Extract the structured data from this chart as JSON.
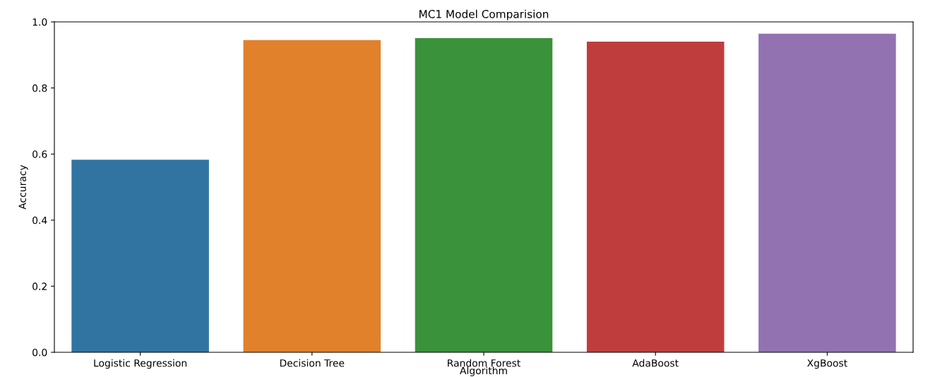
{
  "chart_data": {
    "type": "bar",
    "title": "MC1 Model Comparision",
    "xlabel": "Algorithm",
    "ylabel": "Accuracy",
    "categories": [
      "Logistic Regression",
      "Decision Tree",
      "Random Forest",
      "AdaBoost",
      "XgBoost"
    ],
    "values": [
      0.583,
      0.945,
      0.951,
      0.94,
      0.964
    ],
    "colors": [
      "#3274a1",
      "#e1812c",
      "#3a923a",
      "#c03d3e",
      "#9372b2"
    ],
    "ylim": [
      0,
      1
    ],
    "yticks": [
      {
        "value": 0,
        "label": "0.0"
      },
      0.2,
      0.4,
      0.6,
      0.8,
      {
        "value": 1,
        "label": "1.0"
      }
    ],
    "grid": false
  }
}
